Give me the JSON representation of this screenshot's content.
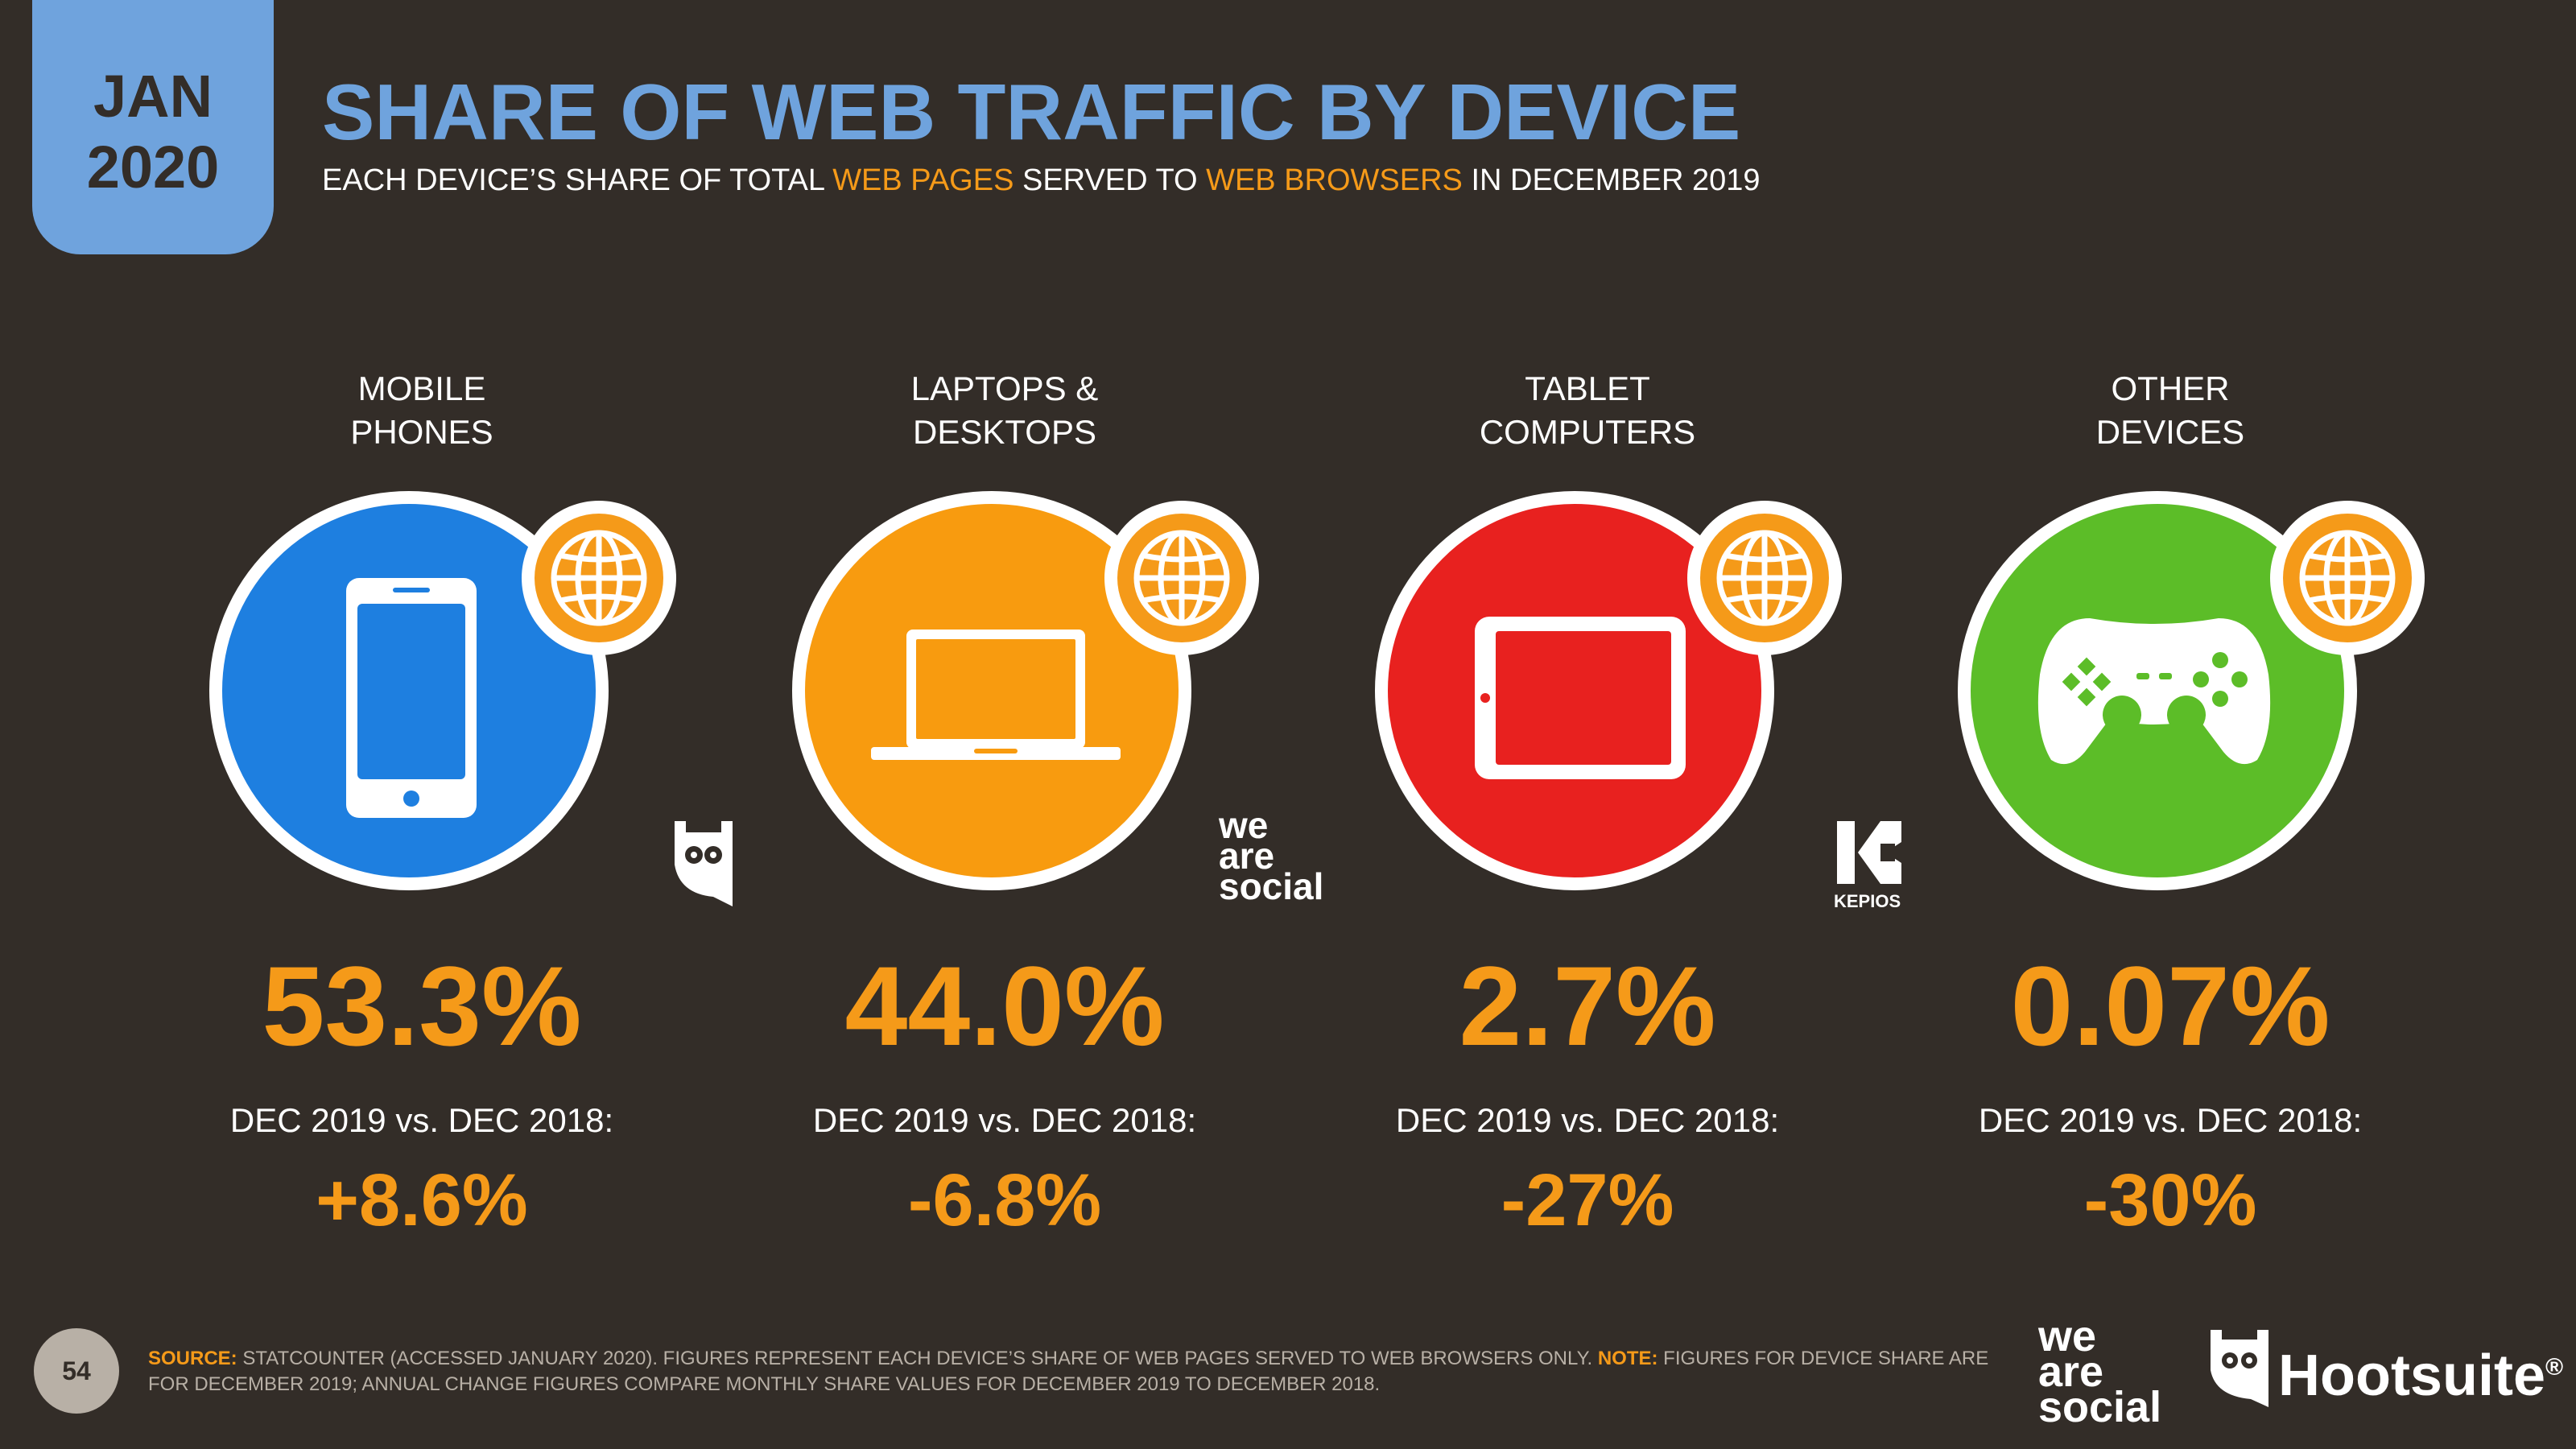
{
  "header": {
    "date_month": "JAN",
    "date_year": "2020",
    "title": "SHARE OF WEB TRAFFIC BY DEVICE",
    "subtitle": {
      "p1": "EACH DEVICE’S SHARE OF TOTAL ",
      "h1": "WEB PAGES",
      "p2": " SERVED TO ",
      "h2": "WEB BROWSERS",
      "p3": " IN DECEMBER 2019"
    }
  },
  "colors": {
    "background": "#332d28",
    "accent_blue": "#6fa3dd",
    "accent_orange": "#f59a19",
    "mobile": "#1e7fe0",
    "laptops": "#f89b0f",
    "tablet": "#e8211f",
    "other": "#5cbd28"
  },
  "devices": [
    {
      "label_line1": "MOBILE",
      "label_line2": "PHONES",
      "icon": "mobile-phone-icon",
      "share": "53.3%",
      "comparison": "DEC 2019 vs. DEC 2018:",
      "change": "+8.6%"
    },
    {
      "label_line1": "LAPTOPS &",
      "label_line2": "DESKTOPS",
      "icon": "laptop-icon",
      "share": "44.0%",
      "comparison": "DEC 2019 vs. DEC 2018:",
      "change": "-6.8%"
    },
    {
      "label_line1": "TABLET",
      "label_line2": "COMPUTERS",
      "icon": "tablet-icon",
      "share": "2.7%",
      "comparison": "DEC 2019 vs. DEC 2018:",
      "change": "-27%"
    },
    {
      "label_line1": "OTHER",
      "label_line2": "DEVICES",
      "icon": "gamepad-icon",
      "share": "0.07%",
      "comparison": "DEC 2019 vs. DEC 2018:",
      "change": "-30%"
    }
  ],
  "logos": {
    "kepios": "KEPIOS",
    "we_are_social_line1": "we",
    "we_are_social_line2": "are",
    "we_are_social_line3": "social",
    "hootsuite": "Hootsuite",
    "hootsuite_mark": "®"
  },
  "footer": {
    "page_number": "54",
    "source_key": "SOURCE:",
    "source_text": " STATCOUNTER (ACCESSED JANUARY 2020). FIGURES REPRESENT EACH DEVICE’S SHARE OF WEB PAGES SERVED TO WEB BROWSERS ONLY. ",
    "note_key": "NOTE:",
    "note_text": " FIGURES FOR DEVICE SHARE ARE FOR DECEMBER 2019; ANNUAL CHANGE FIGURES COMPARE MONTHLY SHARE VALUES FOR DECEMBER 2019 TO DECEMBER 2018."
  }
}
